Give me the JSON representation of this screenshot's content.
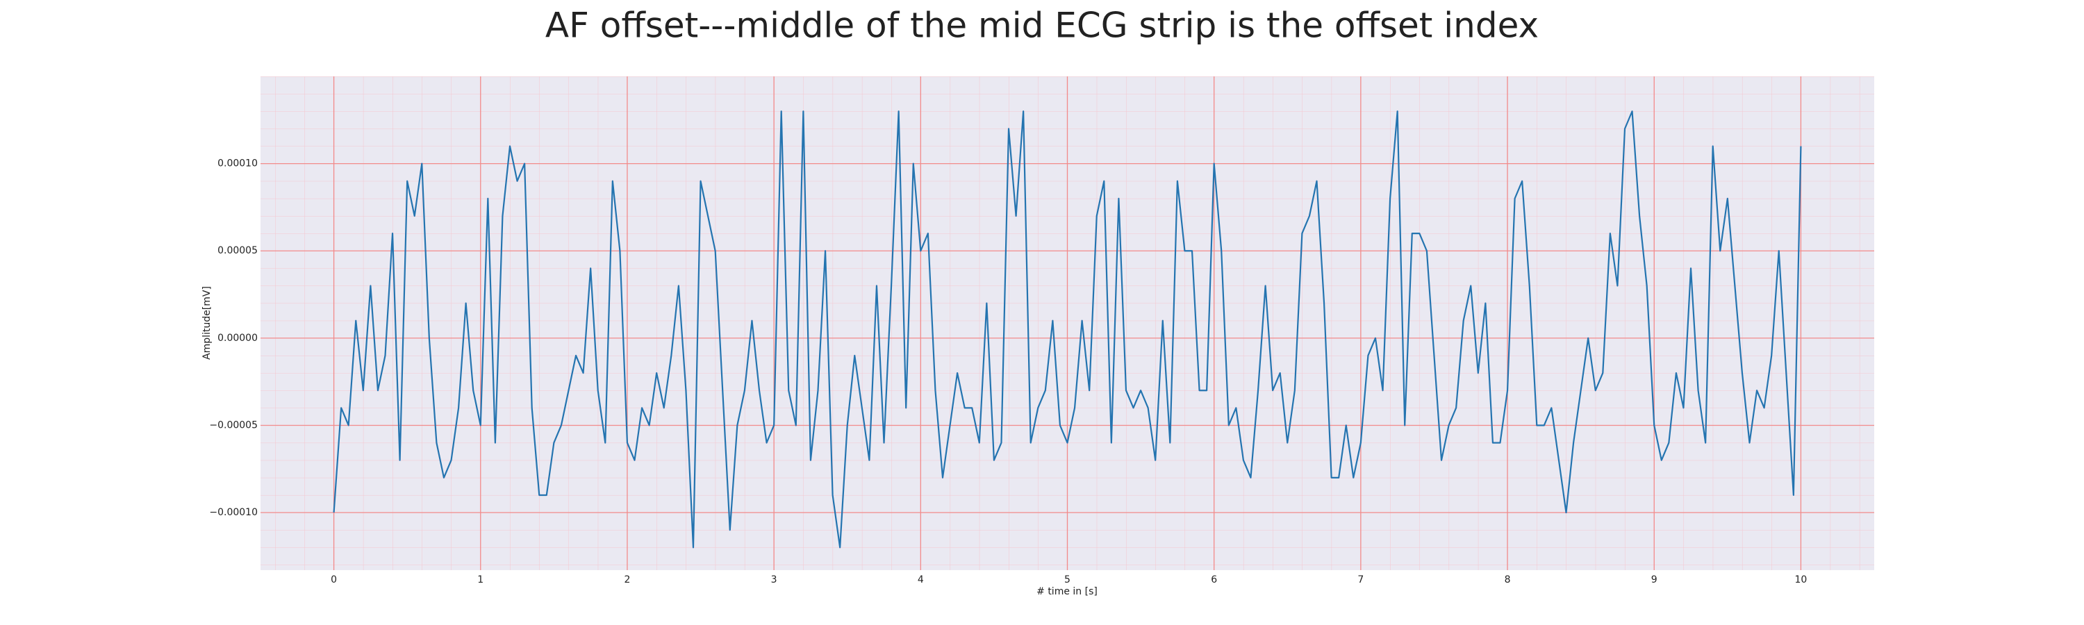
{
  "chart_data": {
    "type": "line",
    "title": "AF offset---middle of the mid ECG strip is the offset index",
    "xlabel": "# time in [s]",
    "ylabel": "Amplitude[mV]",
    "color": "#2474b0",
    "background": "#eae9f2",
    "grid": true,
    "grid_color": "#f28b8b",
    "minor_grid_color": "#f5c6cf",
    "xlim": [
      -0.5,
      10.5
    ],
    "ylim": [
      -0.000133,
      0.00015
    ],
    "xticks": [
      0,
      1,
      2,
      3,
      4,
      5,
      6,
      7,
      8,
      9,
      10
    ],
    "yticks": [
      {
        "value": 0.0001,
        "label": "0.00010"
      },
      {
        "value": 5e-05,
        "label": "0.00005"
      },
      {
        "value": 0,
        "label": "0.00000"
      },
      {
        "value": -5e-05,
        "label": "−0.00005"
      },
      {
        "value": -0.0001,
        "label": "−0.00010"
      }
    ],
    "x": [
      0,
      0.05,
      0.1,
      0.15,
      0.2,
      0.25,
      0.3,
      0.35,
      0.4,
      0.45,
      0.5,
      0.55,
      0.6,
      0.65,
      0.7,
      0.75,
      0.8,
      0.85,
      0.9,
      0.95,
      1,
      1.05,
      1.1,
      1.15,
      1.2,
      1.25,
      1.3,
      1.35,
      1.4,
      1.45,
      1.5,
      1.55,
      1.6,
      1.65,
      1.7,
      1.75,
      1.8,
      1.85,
      1.9,
      1.95,
      2,
      2.05,
      2.1,
      2.15,
      2.2,
      2.25,
      2.3,
      2.35,
      2.4,
      2.45,
      2.5,
      2.55,
      2.6,
      2.65,
      2.7,
      2.75,
      2.8,
      2.85,
      2.9,
      2.95,
      3,
      3.05,
      3.1,
      3.15,
      3.2,
      3.25,
      3.3,
      3.35,
      3.4,
      3.45,
      3.5,
      3.55,
      3.6,
      3.65,
      3.7,
      3.75,
      3.8,
      3.85,
      3.9,
      3.95,
      4,
      4.05,
      4.1,
      4.15,
      4.2,
      4.25,
      4.3,
      4.35,
      4.4,
      4.45,
      4.5,
      4.55,
      4.6,
      4.65,
      4.7,
      4.75,
      4.8,
      4.85,
      4.9,
      4.95,
      5,
      5.05,
      5.1,
      5.15,
      5.2,
      5.25,
      5.3,
      5.35,
      5.4,
      5.45,
      5.5,
      5.55,
      5.6,
      5.65,
      5.7,
      5.75,
      5.8,
      5.85,
      5.9,
      5.95,
      6,
      6.05,
      6.1,
      6.15,
      6.2,
      6.25,
      6.3,
      6.35,
      6.4,
      6.45,
      6.5,
      6.55,
      6.6,
      6.65,
      6.7,
      6.75,
      6.8,
      6.85,
      6.9,
      6.95,
      7,
      7.05,
      7.1,
      7.15,
      7.2,
      7.25,
      7.3,
      7.35,
      7.4,
      7.45,
      7.5,
      7.55,
      7.6,
      7.65,
      7.7,
      7.75,
      7.8,
      7.85,
      7.9,
      7.95,
      8,
      8.05,
      8.1,
      8.15,
      8.2,
      8.25,
      8.3,
      8.35,
      8.4,
      8.45,
      8.5,
      8.55,
      8.6,
      8.65,
      8.7,
      8.75,
      8.8,
      8.85,
      8.9,
      8.95,
      9,
      9.05,
      9.1,
      9.15,
      9.2,
      9.25,
      9.3,
      9.35,
      9.4,
      9.45,
      9.5,
      9.55,
      9.6,
      9.65,
      9.7,
      9.75,
      9.8,
      9.85,
      9.9,
      9.95,
      10
    ],
    "values": [
      -0.0001,
      -4e-05,
      -5e-05,
      1e-05,
      -3e-05,
      3e-05,
      -3e-05,
      -1e-05,
      6e-05,
      -7e-05,
      9e-05,
      7e-05,
      0.0001,
      0,
      -6e-05,
      -8e-05,
      -7e-05,
      -4e-05,
      2e-05,
      -3e-05,
      -5e-05,
      8e-05,
      -6e-05,
      7e-05,
      0.00011,
      9e-05,
      0.0001,
      -4e-05,
      -9e-05,
      -9e-05,
      -6e-05,
      -5e-05,
      -3e-05,
      -1e-05,
      -2e-05,
      4e-05,
      -3e-05,
      -6e-05,
      9e-05,
      5e-05,
      -6e-05,
      -7e-05,
      -4e-05,
      -5e-05,
      -2e-05,
      -4e-05,
      -1e-05,
      3e-05,
      -3e-05,
      -0.00012,
      9e-05,
      7e-05,
      5e-05,
      -3e-05,
      -0.00011,
      -5e-05,
      -3e-05,
      1e-05,
      -3e-05,
      -6e-05,
      -5e-05,
      0.00013,
      -3e-05,
      -5e-05,
      0.00013,
      -7e-05,
      -3e-05,
      5e-05,
      -9e-05,
      -0.00012,
      -5e-05,
      -1e-05,
      -4e-05,
      -7e-05,
      3e-05,
      -6e-05,
      3e-05,
      0.00013,
      -4e-05,
      0.0001,
      5e-05,
      6e-05,
      -3e-05,
      -8e-05,
      -5e-05,
      -2e-05,
      -4e-05,
      -4e-05,
      -6e-05,
      2e-05,
      -7e-05,
      -6e-05,
      0.00012,
      7e-05,
      0.00013,
      -6e-05,
      -4e-05,
      -3e-05,
      1e-05,
      -5e-05,
      -6e-05,
      -4e-05,
      1e-05,
      -3e-05,
      7e-05,
      9e-05,
      -6e-05,
      8e-05,
      -3e-05,
      -4e-05,
      -3e-05,
      -4e-05,
      -7e-05,
      1e-05,
      -6e-05,
      9e-05,
      5e-05,
      5e-05,
      -3e-05,
      -3e-05,
      0.0001,
      5e-05,
      -5e-05,
      -4e-05,
      -7e-05,
      -8e-05,
      -3e-05,
      3e-05,
      -3e-05,
      -2e-05,
      -6e-05,
      -3e-05,
      6e-05,
      7e-05,
      9e-05,
      2e-05,
      -8e-05,
      -8e-05,
      -5e-05,
      -8e-05,
      -6e-05,
      -1e-05,
      0,
      -3e-05,
      8e-05,
      0.00013,
      -5e-05,
      6e-05,
      6e-05,
      5e-05,
      -1e-05,
      -7e-05,
      -5e-05,
      -4e-05,
      1e-05,
      3e-05,
      -2e-05,
      2e-05,
      -6e-05,
      -6e-05,
      -3e-05,
      8e-05,
      9e-05,
      3e-05,
      -5e-05,
      -5e-05,
      -4e-05,
      -7e-05,
      -0.0001,
      -6e-05,
      -3e-05,
      0,
      -3e-05,
      -2e-05,
      6e-05,
      3e-05,
      0.00012,
      0.00013,
      7e-05,
      3e-05,
      -5e-05,
      -7e-05,
      -6e-05,
      -2e-05,
      -4e-05,
      4e-05,
      -3e-05,
      -6e-05,
      0.00011,
      5e-05,
      8e-05,
      3e-05,
      -2e-05,
      -6e-05,
      -3e-05,
      -4e-05,
      -1e-05,
      5e-05,
      -2e-05,
      -9e-05,
      0.00011
    ]
  }
}
